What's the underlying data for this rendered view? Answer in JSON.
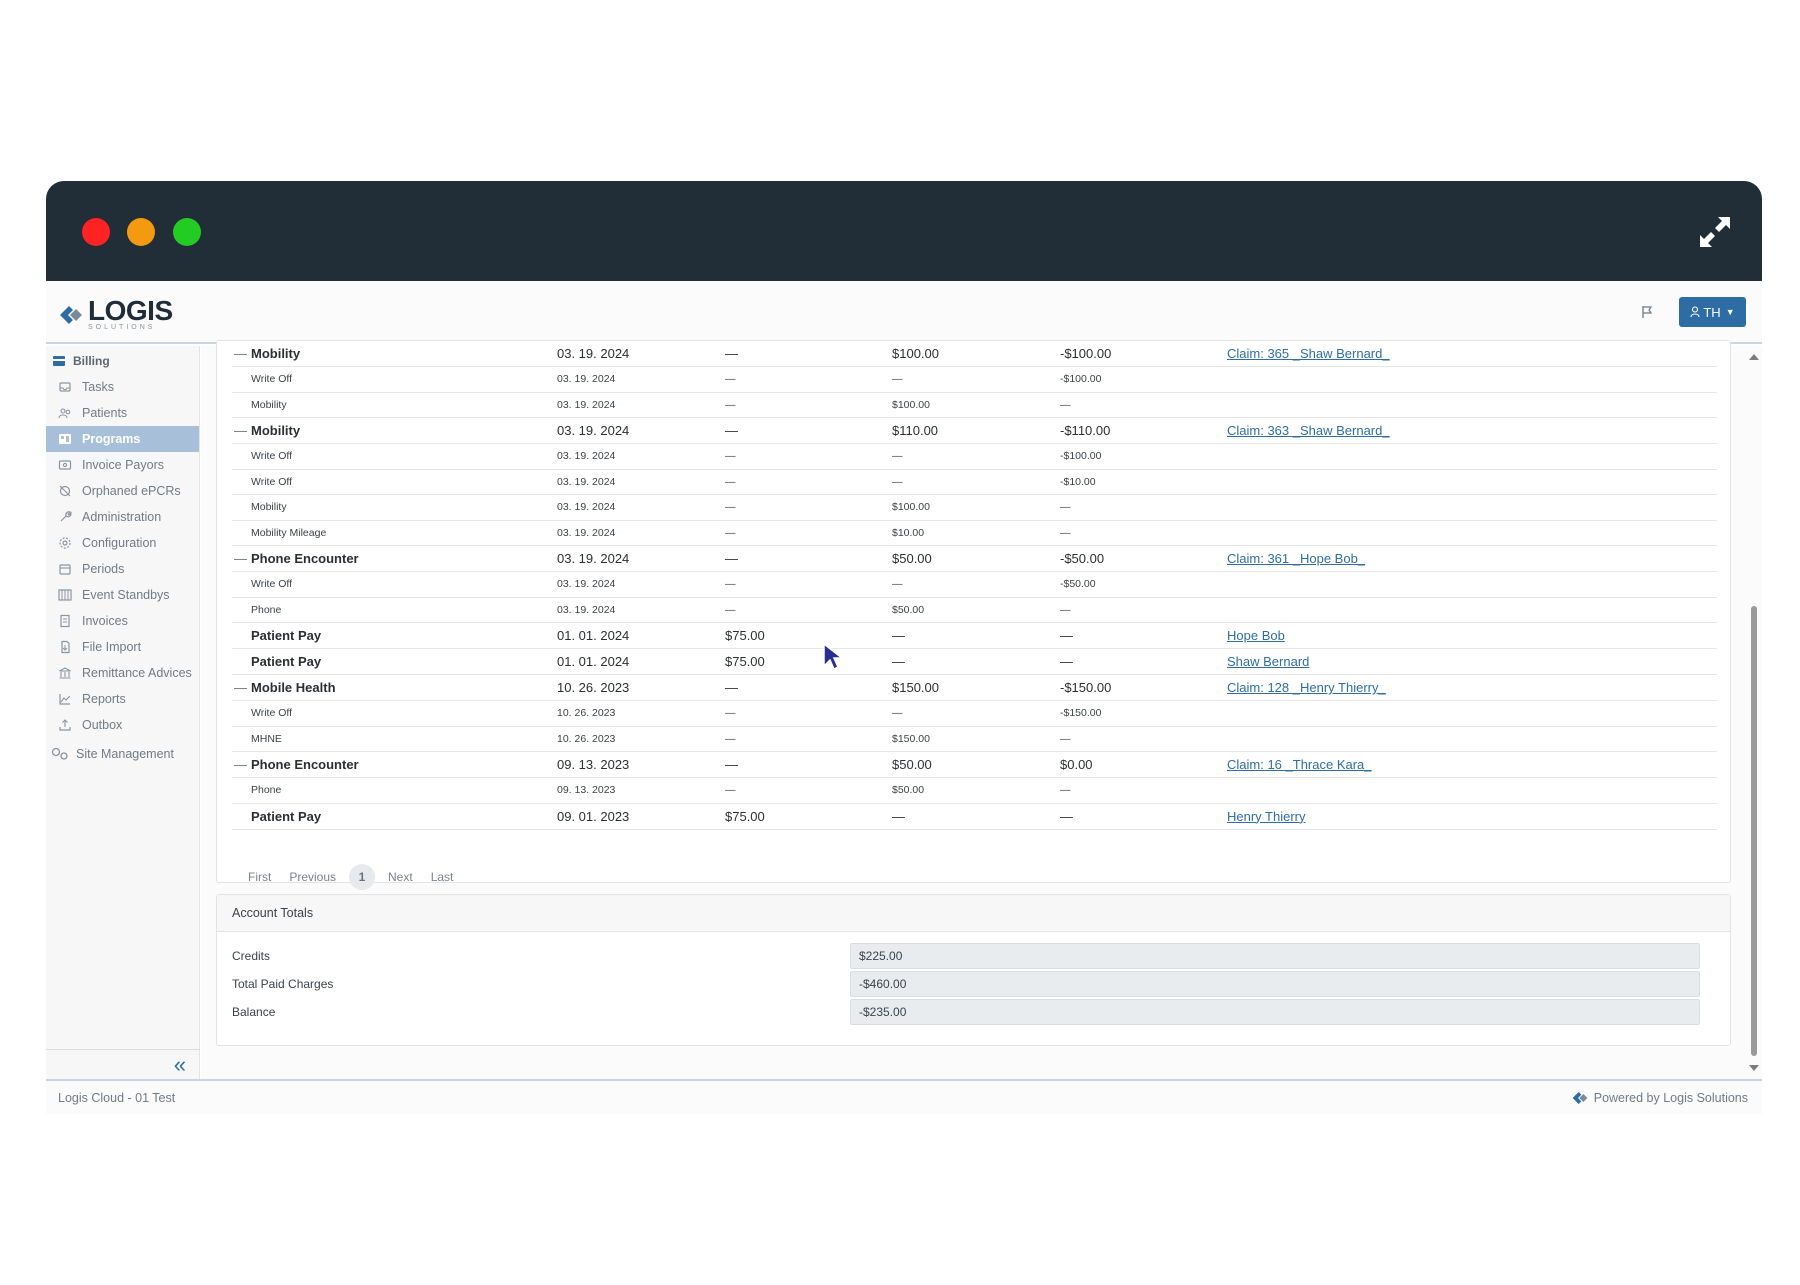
{
  "header": {
    "logo_text": "LOGIS",
    "logo_sub": "SOLUTIONS",
    "user_label": "TH"
  },
  "sidebar": {
    "group": "Billing",
    "items": [
      {
        "label": "Tasks",
        "icon": "inbox-icon",
        "active": false
      },
      {
        "label": "Patients",
        "icon": "patients-icon",
        "active": false
      },
      {
        "label": "Programs",
        "icon": "programs-icon",
        "active": true
      },
      {
        "label": "Invoice Payors",
        "icon": "invoice-payors-icon",
        "active": false
      },
      {
        "label": "Orphaned ePCRs",
        "icon": "orphaned-icon",
        "active": false
      },
      {
        "label": "Administration",
        "icon": "wrench-icon",
        "active": false
      },
      {
        "label": "Configuration",
        "icon": "gear-icon",
        "active": false
      },
      {
        "label": "Periods",
        "icon": "calendar-icon",
        "active": false
      },
      {
        "label": "Event Standbys",
        "icon": "standby-icon",
        "active": false
      },
      {
        "label": "Invoices",
        "icon": "invoice-icon",
        "active": false
      },
      {
        "label": "File Import",
        "icon": "file-import-icon",
        "active": false
      },
      {
        "label": "Remittance Advices",
        "icon": "bank-icon",
        "active": false
      },
      {
        "label": "Reports",
        "icon": "chart-icon",
        "active": false
      },
      {
        "label": "Outbox",
        "icon": "outbox-icon",
        "active": false
      }
    ],
    "site_management": "Site Management"
  },
  "ledger": {
    "rows": [
      {
        "type": "main",
        "collapsible": true,
        "desc": "Mobility",
        "date": "03. 19. 2024",
        "credit": "—",
        "charge": "$100.00",
        "paid": "-$100.00",
        "link": "Claim: 365 _Shaw Bernard_"
      },
      {
        "type": "sub",
        "desc": "Write Off",
        "date": "03. 19. 2024",
        "credit": "—",
        "charge": "—",
        "paid": "-$100.00",
        "link": ""
      },
      {
        "type": "sub",
        "desc": "Mobility",
        "date": "03. 19. 2024",
        "credit": "—",
        "charge": "$100.00",
        "paid": "—",
        "link": ""
      },
      {
        "type": "main",
        "collapsible": true,
        "desc": "Mobility",
        "date": "03. 19. 2024",
        "credit": "—",
        "charge": "$110.00",
        "paid": "-$110.00",
        "link": "Claim: 363 _Shaw Bernard_"
      },
      {
        "type": "sub",
        "desc": "Write Off",
        "date": "03. 19. 2024",
        "credit": "—",
        "charge": "—",
        "paid": "-$100.00",
        "link": ""
      },
      {
        "type": "sub",
        "desc": "Write Off",
        "date": "03. 19. 2024",
        "credit": "—",
        "charge": "—",
        "paid": "-$10.00",
        "link": ""
      },
      {
        "type": "sub",
        "desc": "Mobility",
        "date": "03. 19. 2024",
        "credit": "—",
        "charge": "$100.00",
        "paid": "—",
        "link": ""
      },
      {
        "type": "sub",
        "desc": "Mobility Mileage",
        "date": "03. 19. 2024",
        "credit": "—",
        "charge": "$10.00",
        "paid": "—",
        "link": ""
      },
      {
        "type": "main",
        "collapsible": true,
        "desc": "Phone Encounter",
        "date": "03. 19. 2024",
        "credit": "—",
        "charge": "$50.00",
        "paid": "-$50.00",
        "link": "Claim: 361 _Hope Bob_"
      },
      {
        "type": "sub",
        "desc": "Write Off",
        "date": "03. 19. 2024",
        "credit": "—",
        "charge": "—",
        "paid": "-$50.00",
        "link": ""
      },
      {
        "type": "sub",
        "desc": "Phone",
        "date": "03. 19. 2024",
        "credit": "—",
        "charge": "$50.00",
        "paid": "—",
        "link": ""
      },
      {
        "type": "main",
        "collapsible": false,
        "desc": "Patient Pay",
        "date": "01. 01. 2024",
        "credit": "$75.00",
        "charge": "—",
        "paid": "—",
        "link": "Hope Bob"
      },
      {
        "type": "main",
        "collapsible": false,
        "desc": "Patient Pay",
        "date": "01. 01. 2024",
        "credit": "$75.00",
        "charge": "—",
        "paid": "—",
        "link": "Shaw Bernard"
      },
      {
        "type": "main",
        "collapsible": true,
        "desc": "Mobile Health",
        "date": "10. 26. 2023",
        "credit": "—",
        "charge": "$150.00",
        "paid": "-$150.00",
        "link": "Claim: 128 _Henry Thierry_"
      },
      {
        "type": "sub",
        "desc": "Write Off",
        "date": "10. 26. 2023",
        "credit": "—",
        "charge": "—",
        "paid": "-$150.00",
        "link": ""
      },
      {
        "type": "sub",
        "desc": "MHNE",
        "date": "10. 26. 2023",
        "credit": "—",
        "charge": "$150.00",
        "paid": "—",
        "link": ""
      },
      {
        "type": "main",
        "collapsible": true,
        "desc": "Phone Encounter",
        "date": "09. 13. 2023",
        "credit": "—",
        "charge": "$50.00",
        "paid": "$0.00",
        "link": "Claim: 16 _Thrace Kara_"
      },
      {
        "type": "sub",
        "desc": "Phone",
        "date": "09. 13. 2023",
        "credit": "—",
        "charge": "$50.00",
        "paid": "—",
        "link": ""
      },
      {
        "type": "main",
        "collapsible": false,
        "desc": "Patient Pay",
        "date": "09. 01. 2023",
        "credit": "$75.00",
        "charge": "—",
        "paid": "—",
        "link": "Henry Thierry"
      }
    ]
  },
  "pager": {
    "first": "First",
    "previous": "Previous",
    "current": "1",
    "next": "Next",
    "last": "Last"
  },
  "totals": {
    "title": "Account Totals",
    "credits_label": "Credits",
    "credits_value": "$225.00",
    "paid_label": "Total Paid Charges",
    "paid_value": "-$460.00",
    "balance_label": "Balance",
    "balance_value": "-$235.00"
  },
  "footer": {
    "left": "Logis Cloud - 01 Test",
    "right": "Powered by Logis Solutions"
  },
  "colors": {
    "titlebar": "#212e38",
    "accent": "#2e6da4",
    "active_nav": "#a7bfd8"
  }
}
